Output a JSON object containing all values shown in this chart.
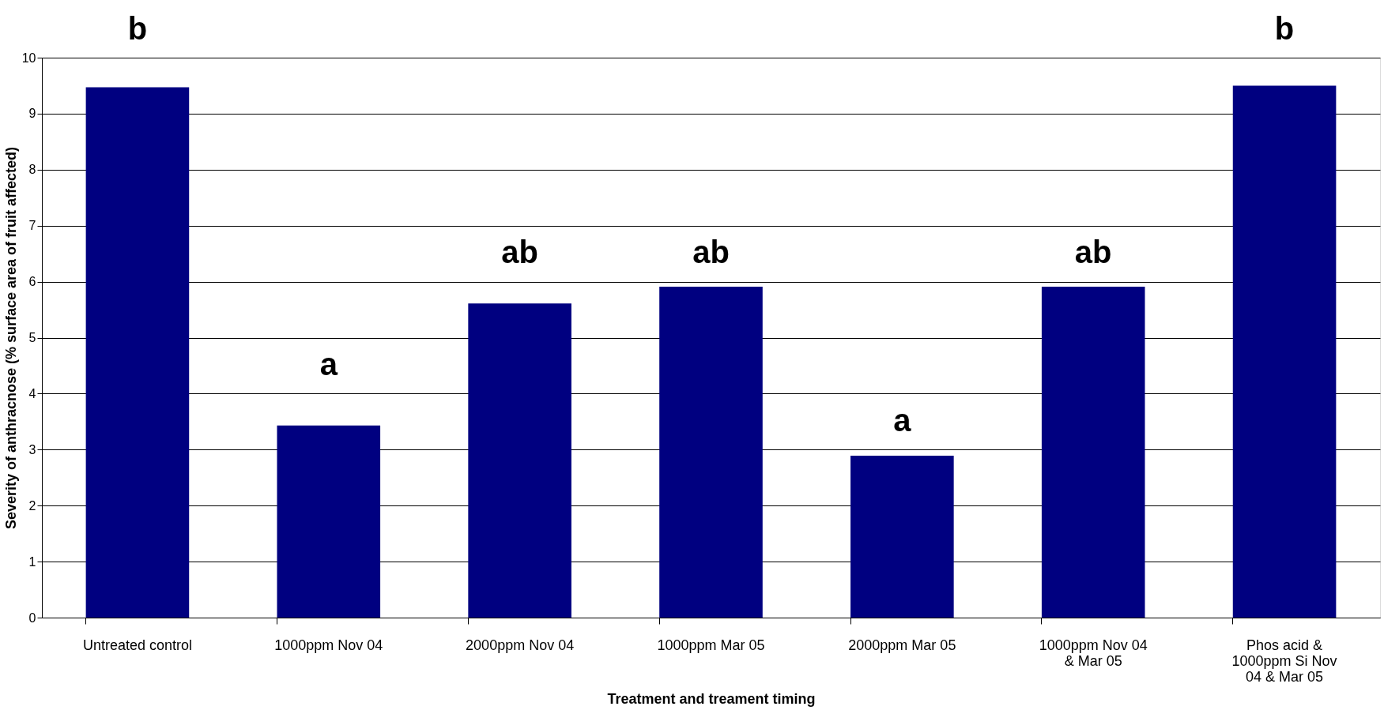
{
  "chart_data": {
    "type": "bar",
    "xlabel": "Treatment and treament timing",
    "ylabel": "Severity of anthracnose (% surface area of fruit affected)",
    "categories": [
      "Untreated control",
      "1000ppm Nov 04",
      "2000ppm Nov 04",
      "1000ppm Mar 05",
      "2000ppm Mar 05",
      "1000ppm Nov 04\n& Mar 05",
      "Phos acid &\n1000ppm Si Nov\n04 & Mar 05"
    ],
    "values": [
      9.47,
      3.43,
      5.61,
      5.91,
      2.89,
      5.91,
      9.5
    ],
    "color": "#000080",
    "ylim": [
      0,
      10
    ],
    "yticks": [
      0,
      1,
      2,
      3,
      4,
      5,
      6,
      7,
      8,
      9,
      10
    ],
    "grid": "y",
    "annotations": [
      {
        "text": "b",
        "x": "Untreated control",
        "y": 9.47
      },
      {
        "text": "a",
        "x": "1000ppm Nov 04",
        "y": 3.43
      },
      {
        "text": "ab",
        "x": "2000ppm Nov 04",
        "y": 5.61
      },
      {
        "text": "ab",
        "x": "1000ppm Mar 05",
        "y": 5.91
      },
      {
        "text": "a",
        "x": "2000ppm Mar 05",
        "y": 2.89
      },
      {
        "text": "ab",
        "x": "1000ppm Nov 04\n& Mar 05",
        "y": 5.91
      },
      {
        "text": "b",
        "x": "Phos acid &\n1000ppm Si Nov\n04 & Mar 05",
        "y": 9.5
      }
    ]
  }
}
